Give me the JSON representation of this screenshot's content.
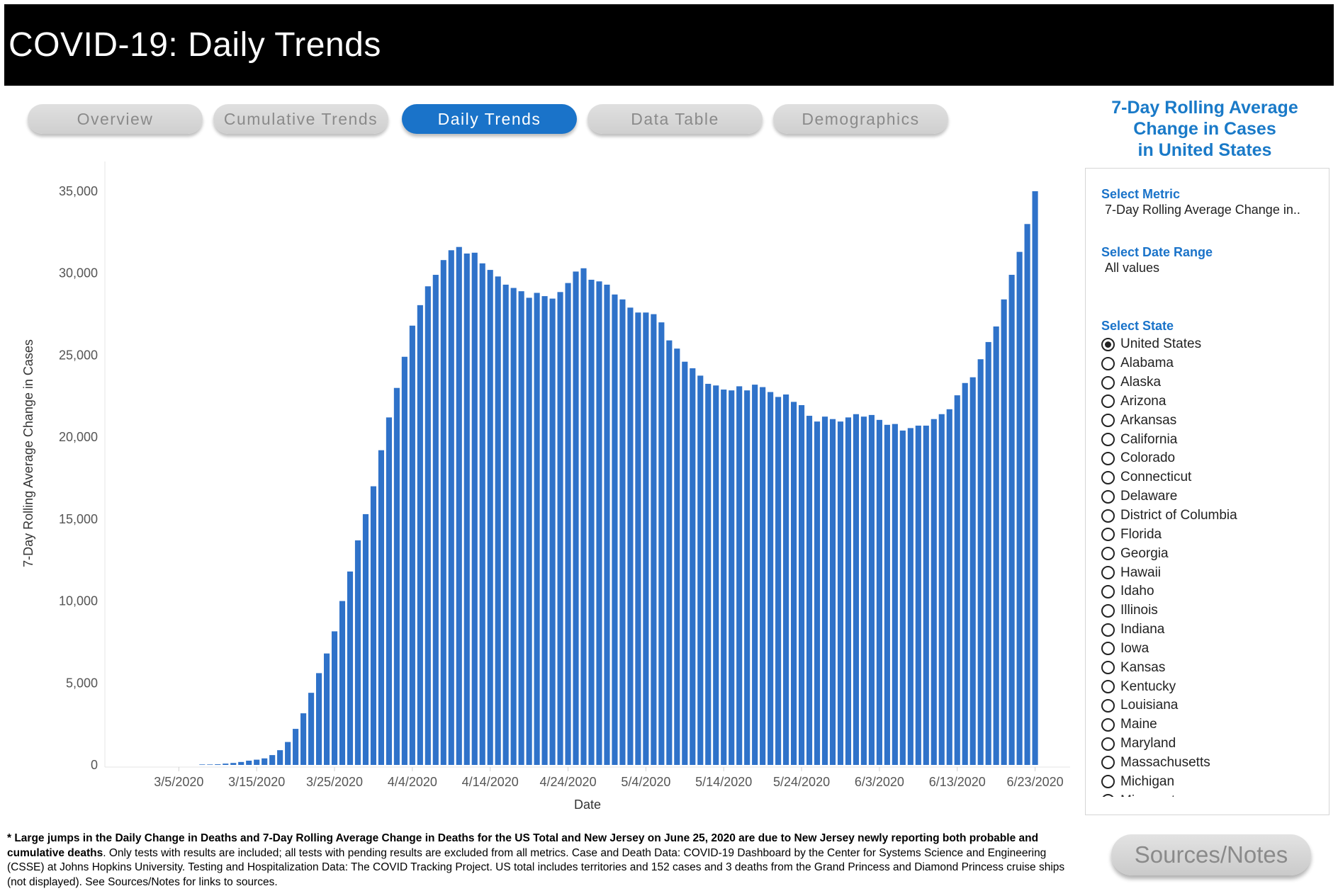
{
  "header": {
    "title": "COVID-19: Daily Trends"
  },
  "tabs": [
    {
      "label": "Overview",
      "active": false
    },
    {
      "label": "Cumulative Trends",
      "active": false
    },
    {
      "label": "Daily Trends",
      "active": true
    },
    {
      "label": "Data Table",
      "active": false
    },
    {
      "label": "Demographics",
      "active": false
    }
  ],
  "panel": {
    "title_lines": [
      "7-Day Rolling Average",
      "Change in Cases",
      "in United States"
    ],
    "metric_label": "Select Metric",
    "metric_value": "7-Day Rolling Average Change in..",
    "date_label": "Select Date Range",
    "date_value": "All values",
    "state_label": "Select State",
    "states": [
      "United States",
      "Alabama",
      "Alaska",
      "Arizona",
      "Arkansas",
      "California",
      "Colorado",
      "Connecticut",
      "Delaware",
      "District of Columbia",
      "Florida",
      "Georgia",
      "Hawaii",
      "Idaho",
      "Illinois",
      "Indiana",
      "Iowa",
      "Kansas",
      "Kentucky",
      "Louisiana",
      "Maine",
      "Maryland",
      "Massachusetts",
      "Michigan",
      "Minnesota"
    ],
    "selected_state": "United States"
  },
  "footnote": {
    "bold": "* Large jumps in the Daily Change in Deaths and 7-Day Rolling Average Change in Deaths for the US Total and New Jersey on June 25, 2020 are due to New Jersey newly reporting both probable and cumulative deaths",
    "rest": ". Only tests with results are included; all tests with pending results are excluded from all metrics. Case and Death Data: COVID-19 Dashboard by the Center for Systems Science and Engineering (CSSE) at Johns Hopkins University. Testing and Hospitalization Data: The COVID Tracking Project. US total includes territories and 152 cases and 3 deaths from the Grand Princess and Diamond Princess cruise ships (not displayed). See Sources/Notes for links to sources."
  },
  "sources_button": "Sources/Notes",
  "colors": {
    "bar": "#2f72c9",
    "accent": "#1a73c9",
    "header_bg": "#000000"
  },
  "chart_data": {
    "type": "bar",
    "xlabel": "Date",
    "ylabel": "7-Day Rolling Average Change in Cases",
    "ylim": [
      0,
      35000
    ],
    "yticks": [
      0,
      5000,
      10000,
      15000,
      20000,
      25000,
      30000,
      35000
    ],
    "ytick_labels": [
      "0",
      "5,000",
      "10,000",
      "15,000",
      "20,000",
      "25,000",
      "30,000",
      "35,000"
    ],
    "xticks": [
      "3/5/2020",
      "3/15/2020",
      "3/25/2020",
      "4/4/2020",
      "4/14/2020",
      "4/24/2020",
      "5/4/2020",
      "5/14/2020",
      "5/24/2020",
      "6/3/2020",
      "6/13/2020",
      "6/23/2020"
    ],
    "grid": false,
    "start_date": "2020-02-25",
    "end_date": "2020-06-27",
    "series": [
      {
        "values": [
          0,
          0,
          0,
          0,
          0,
          0,
          0,
          0,
          0,
          0,
          0,
          0,
          30,
          30,
          40,
          80,
          120,
          180,
          260,
          320,
          400,
          600,
          900,
          1400,
          2200,
          3150,
          4400,
          5600,
          6800,
          8150,
          10000,
          11800,
          13700,
          15300,
          17000,
          19200,
          21200,
          23000,
          24900,
          26800,
          28050,
          29200,
          29900,
          30800,
          31400,
          31600,
          31200,
          31250,
          30600,
          30200,
          29800,
          29300,
          29100,
          28900,
          28500,
          28800,
          28600,
          28450,
          28850,
          29400,
          30100,
          30300,
          29600,
          29500,
          29300,
          28700,
          28400,
          27900,
          27600,
          27600,
          27500,
          27000,
          25900,
          25400,
          24600,
          24200,
          23750,
          23250,
          23150,
          22900,
          22850,
          23100,
          22850,
          23200,
          23050,
          22750,
          22450,
          22600,
          22150,
          21950,
          21300,
          20950,
          21250,
          21100,
          20950,
          21200,
          21400,
          21250,
          21350,
          21050,
          20750,
          20800,
          20400,
          20550,
          20700,
          20700,
          21100,
          21400,
          21700,
          22550,
          23300,
          23650,
          24750,
          25800,
          26750,
          28400,
          29900,
          31300,
          33000,
          35000
        ]
      }
    ]
  }
}
